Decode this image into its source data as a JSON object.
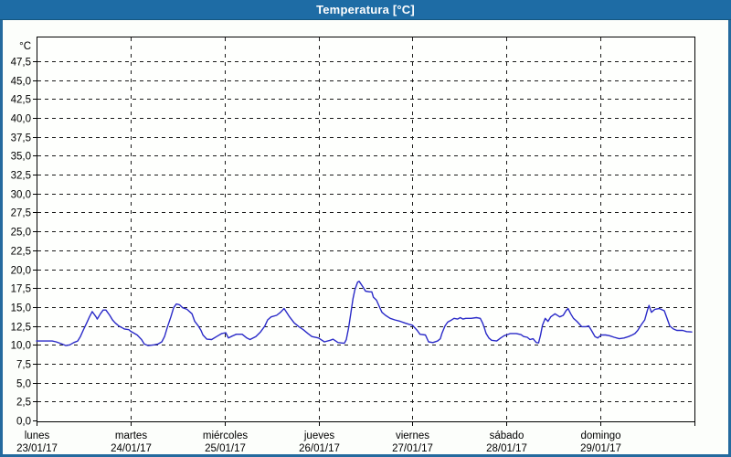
{
  "window": {
    "title": "Temperatura [°C]"
  },
  "colors": {
    "titlebar_bg": "#1e6ca5",
    "titlebar_text": "#ffffff",
    "frame_border": "#246a9e",
    "background": "#fcfefb",
    "plot_background": "#fefffd",
    "axis": "#000000",
    "grid": "#1a1a1a",
    "line": "#2a2ac8",
    "label_text": "#000000"
  },
  "chart_data": {
    "type": "line",
    "title": "Temperatura [°C]",
    "y_unit_label": "°C",
    "y_min": 0,
    "y_max": 47.5,
    "y_step": 2.5,
    "decimal_separator": ",",
    "grid": "dashed",
    "legend": "none",
    "x_days": [
      {
        "name": "lunes",
        "date": "23/01/17"
      },
      {
        "name": "martes",
        "date": "24/01/17"
      },
      {
        "name": "miércoles",
        "date": "25/01/17"
      },
      {
        "name": "jueves",
        "date": "26/01/17"
      },
      {
        "name": "viernes",
        "date": "27/01/17"
      },
      {
        "name": "sábado",
        "date": "28/01/17"
      },
      {
        "name": "domingo",
        "date": "29/01/17"
      }
    ],
    "x_unit": "hours_since_monday_00h",
    "x_range_hours": [
      0,
      168
    ],
    "series": [
      {
        "name": "Temperatura",
        "color": "#2a2ac8",
        "points": [
          [
            0,
            10.5
          ],
          [
            2,
            10.5
          ],
          [
            4,
            10.5
          ],
          [
            5,
            10.4
          ],
          [
            6.5,
            10.1
          ],
          [
            7.5,
            9.9
          ],
          [
            8.5,
            10.0
          ],
          [
            9.5,
            10.3
          ],
          [
            10.5,
            10.5
          ],
          [
            11.2,
            11.1
          ],
          [
            11.9,
            11.9
          ],
          [
            12.8,
            12.9
          ],
          [
            13.5,
            13.7
          ],
          [
            14.2,
            14.4
          ],
          [
            15.2,
            13.7
          ],
          [
            15.5,
            13.4
          ],
          [
            16.3,
            14.1
          ],
          [
            17,
            14.6
          ],
          [
            17.7,
            14.6
          ],
          [
            18.7,
            13.9
          ],
          [
            19.4,
            13.3
          ],
          [
            20.1,
            12.9
          ],
          [
            21,
            12.5
          ],
          [
            21.7,
            12.3
          ],
          [
            22.4,
            12.1
          ],
          [
            23.6,
            12.0
          ],
          [
            24,
            11.8
          ],
          [
            25.7,
            11.3
          ],
          [
            26.8,
            10.7
          ],
          [
            27.5,
            10.1
          ],
          [
            28.5,
            9.9
          ],
          [
            30,
            10.0
          ],
          [
            31,
            10.1
          ],
          [
            32,
            10.4
          ],
          [
            32.7,
            11.1
          ],
          [
            33.4,
            12.3
          ],
          [
            34.3,
            13.7
          ],
          [
            35,
            14.9
          ],
          [
            35.7,
            15.4
          ],
          [
            36.5,
            15.3
          ],
          [
            37.3,
            14.9
          ],
          [
            38.4,
            14.7
          ],
          [
            39.7,
            14.1
          ],
          [
            40.4,
            13.1
          ],
          [
            41.3,
            12.5
          ],
          [
            42,
            11.9
          ],
          [
            42.5,
            11.3
          ],
          [
            43.5,
            10.75
          ],
          [
            44.7,
            10.7
          ],
          [
            46,
            11.1
          ],
          [
            47.3,
            11.5
          ],
          [
            48.3,
            11.6
          ],
          [
            49,
            10.9
          ],
          [
            49.7,
            11.1
          ],
          [
            51,
            11.4
          ],
          [
            52.5,
            11.4
          ],
          [
            53.7,
            10.9
          ],
          [
            54.5,
            10.7
          ],
          [
            56,
            11.1
          ],
          [
            57.2,
            11.7
          ],
          [
            58.3,
            12.5
          ],
          [
            59,
            13.3
          ],
          [
            59.9,
            13.7
          ],
          [
            61.3,
            13.9
          ],
          [
            62.3,
            14.3
          ],
          [
            63.2,
            14.8
          ],
          [
            64.6,
            13.7
          ],
          [
            65.8,
            12.9
          ],
          [
            67,
            12.4
          ],
          [
            68.1,
            12.0
          ],
          [
            69.3,
            11.5
          ],
          [
            70.3,
            11.1
          ],
          [
            72,
            10.9
          ],
          [
            73.5,
            10.4
          ],
          [
            75,
            10.6
          ],
          [
            75.7,
            10.75
          ],
          [
            77,
            10.3
          ],
          [
            78.6,
            10.2
          ],
          [
            79.1,
            10.7
          ],
          [
            79.7,
            12.3
          ],
          [
            80.3,
            14.3
          ],
          [
            80.8,
            16.1
          ],
          [
            81.3,
            17.3
          ],
          [
            82,
            18.3
          ],
          [
            82.4,
            18.4
          ],
          [
            83.3,
            17.7
          ],
          [
            84,
            17.1
          ],
          [
            85,
            17.0
          ],
          [
            85.6,
            17.0
          ],
          [
            86,
            16.3
          ],
          [
            86.8,
            15.9
          ],
          [
            87.5,
            15.1
          ],
          [
            88.2,
            14.3
          ],
          [
            89.1,
            13.9
          ],
          [
            90.3,
            13.5
          ],
          [
            91.5,
            13.3
          ],
          [
            92.9,
            13.1
          ],
          [
            94,
            12.9
          ],
          [
            95.2,
            12.7
          ],
          [
            96,
            12.6
          ],
          [
            97.2,
            11.9
          ],
          [
            97.9,
            11.4
          ],
          [
            99.3,
            11.3
          ],
          [
            100.1,
            10.4
          ],
          [
            101.2,
            10.3
          ],
          [
            102.4,
            10.5
          ],
          [
            103.1,
            10.8
          ],
          [
            103.5,
            11.5
          ],
          [
            104.3,
            12.5
          ],
          [
            105,
            13.0
          ],
          [
            105.7,
            13.2
          ],
          [
            106.6,
            13.5
          ],
          [
            107.5,
            13.4
          ],
          [
            108.2,
            13.6
          ],
          [
            108.9,
            13.4
          ],
          [
            109.6,
            13.5
          ],
          [
            111,
            13.5
          ],
          [
            112.3,
            13.6
          ],
          [
            113.3,
            13.5
          ],
          [
            113.9,
            12.9
          ],
          [
            114.3,
            12.3
          ],
          [
            114.8,
            11.5
          ],
          [
            115.5,
            10.9
          ],
          [
            116.2,
            10.6
          ],
          [
            117.5,
            10.5
          ],
          [
            118.5,
            10.9
          ],
          [
            119.4,
            11.2
          ],
          [
            120.2,
            11.35
          ],
          [
            121,
            11.5
          ],
          [
            122.5,
            11.5
          ],
          [
            123.7,
            11.35
          ],
          [
            124.4,
            11.1
          ],
          [
            125.3,
            11.0
          ],
          [
            126,
            10.7
          ],
          [
            126.8,
            10.8
          ],
          [
            127.6,
            10.3
          ],
          [
            128.2,
            10.25
          ],
          [
            128.7,
            11.3
          ],
          [
            129.2,
            12.6
          ],
          [
            129.9,
            13.5
          ],
          [
            130.6,
            13.1
          ],
          [
            131.3,
            13.7
          ],
          [
            132.4,
            14.1
          ],
          [
            133.6,
            13.7
          ],
          [
            134.5,
            13.9
          ],
          [
            135.2,
            14.5
          ],
          [
            135.7,
            14.8
          ],
          [
            136.4,
            14.1
          ],
          [
            137.1,
            13.5
          ],
          [
            138,
            13.1
          ],
          [
            139.2,
            12.4
          ],
          [
            140.3,
            12.4
          ],
          [
            141,
            12.5
          ],
          [
            141.7,
            11.9
          ],
          [
            142.6,
            11.1
          ],
          [
            143.3,
            10.9
          ],
          [
            144.2,
            11.3
          ],
          [
            145.3,
            11.3
          ],
          [
            146.3,
            11.2
          ],
          [
            147.5,
            11.0
          ],
          [
            148.8,
            10.8
          ],
          [
            150,
            10.9
          ],
          [
            151.2,
            11.1
          ],
          [
            152.1,
            11.3
          ],
          [
            152.8,
            11.5
          ],
          [
            153.5,
            11.9
          ],
          [
            154.5,
            12.7
          ],
          [
            155.3,
            13.3
          ],
          [
            156,
            14.6
          ],
          [
            156.4,
            15.2
          ],
          [
            157,
            14.3
          ],
          [
            157.9,
            14.7
          ],
          [
            159,
            14.8
          ],
          [
            160.3,
            14.5
          ],
          [
            161,
            13.5
          ],
          [
            161.7,
            12.5
          ],
          [
            162.6,
            12.1
          ],
          [
            163.5,
            11.9
          ],
          [
            165,
            11.9
          ],
          [
            166,
            11.75
          ],
          [
            167.3,
            11.7
          ]
        ]
      }
    ]
  }
}
